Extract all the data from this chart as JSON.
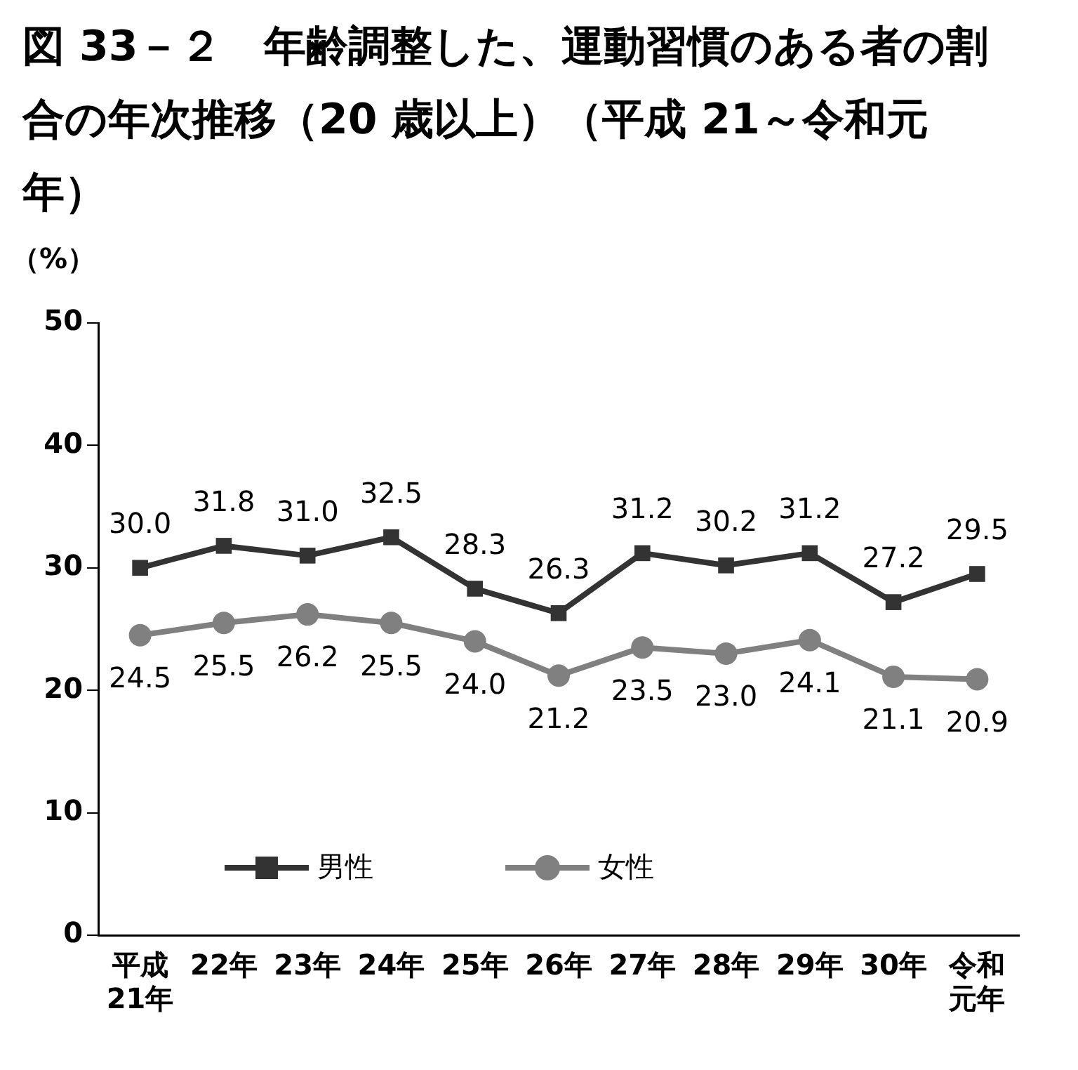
{
  "chart_data": {
    "type": "line",
    "title": "図 33－２　年齢調整した、運動習慣のある者の割合の年次推移（20 歳以上）（平成 21～令和元年）",
    "ylabel": "（%）",
    "categories": [
      "平成21年",
      "22年",
      "23年",
      "24年",
      "25年",
      "26年",
      "27年",
      "28年",
      "29年",
      "30年",
      "令和元年"
    ],
    "series": [
      {
        "name": "男性",
        "color": "#333333",
        "marker": "square",
        "values": [
          30.0,
          31.8,
          31.0,
          32.5,
          28.3,
          26.3,
          31.2,
          30.2,
          31.2,
          27.2,
          29.5
        ],
        "value_labels": [
          "30.0",
          "31.8",
          "31.0",
          "32.5",
          "28.3",
          "26.3",
          "31.2",
          "30.2",
          "31.2",
          "27.2",
          "29.5"
        ]
      },
      {
        "name": "女性",
        "color": "#808080",
        "marker": "circle",
        "values": [
          24.5,
          25.5,
          26.2,
          25.5,
          24.0,
          21.2,
          23.5,
          23.0,
          24.1,
          21.1,
          20.9
        ],
        "value_labels": [
          "24.5",
          "25.5",
          "26.2",
          "25.5",
          "24.0",
          "21.2",
          "23.5",
          "23.0",
          "24.1",
          "21.1",
          "20.9"
        ]
      }
    ],
    "ylim": [
      0,
      50
    ],
    "yticks": [
      0,
      10,
      20,
      30,
      40,
      50
    ],
    "grid": false,
    "legend": "bottom left",
    "line_style": "solid"
  }
}
